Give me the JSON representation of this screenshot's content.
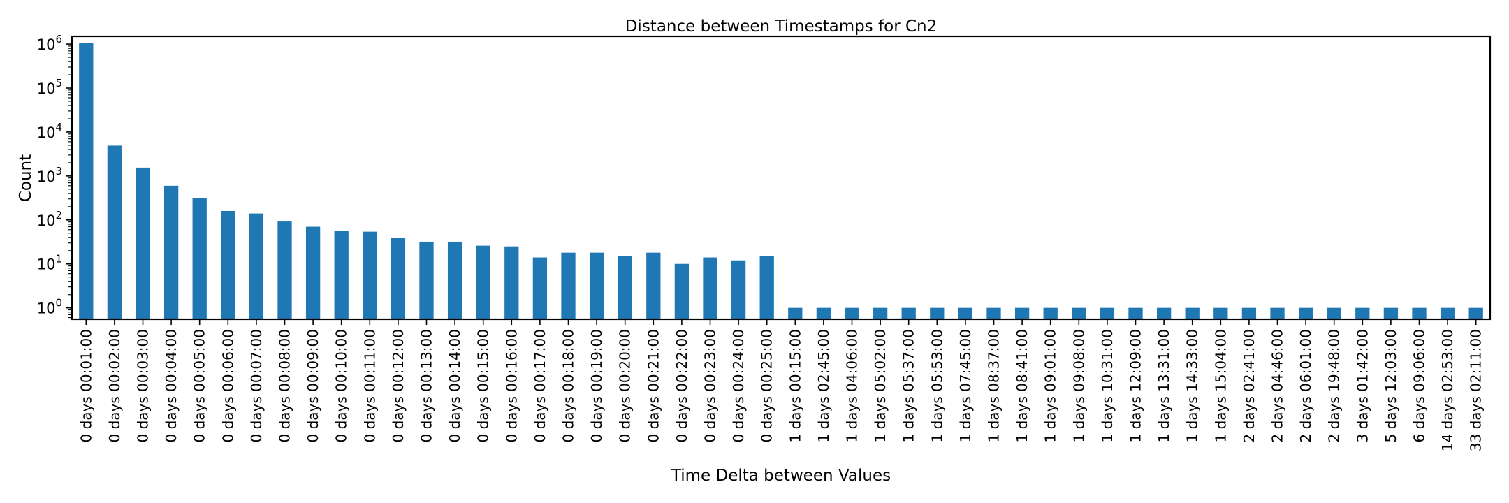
{
  "chart_data": {
    "type": "bar",
    "title": "Distance between Timestamps for Cn2",
    "xlabel": "Time Delta between Values",
    "ylabel": "Count",
    "yscale": "log",
    "ylim": [
      0.55,
      1500000
    ],
    "yticks": [
      {
        "value": 1,
        "base": "10",
        "exp": "0"
      },
      {
        "value": 10,
        "base": "10",
        "exp": "1"
      },
      {
        "value": 100,
        "base": "10",
        "exp": "2"
      },
      {
        "value": 1000,
        "base": "10",
        "exp": "3"
      },
      {
        "value": 10000,
        "base": "10",
        "exp": "4"
      },
      {
        "value": 100000,
        "base": "10",
        "exp": "5"
      },
      {
        "value": 1000000,
        "base": "10",
        "exp": "6"
      }
    ],
    "grid": false,
    "legend": false,
    "bar_color": "#1f77b4",
    "categories": [
      "0 days 00:01:00",
      "0 days 00:02:00",
      "0 days 00:03:00",
      "0 days 00:04:00",
      "0 days 00:05:00",
      "0 days 00:06:00",
      "0 days 00:07:00",
      "0 days 00:08:00",
      "0 days 00:09:00",
      "0 days 00:10:00",
      "0 days 00:11:00",
      "0 days 00:12:00",
      "0 days 00:13:00",
      "0 days 00:14:00",
      "0 days 00:15:00",
      "0 days 00:16:00",
      "0 days 00:17:00",
      "0 days 00:18:00",
      "0 days 00:19:00",
      "0 days 00:20:00",
      "0 days 00:21:00",
      "0 days 00:22:00",
      "0 days 00:23:00",
      "0 days 00:24:00",
      "0 days 00:25:00",
      "1 days 00:15:00",
      "1 days 02:45:00",
      "1 days 04:06:00",
      "1 days 05:02:00",
      "1 days 05:37:00",
      "1 days 05:53:00",
      "1 days 07:45:00",
      "1 days 08:37:00",
      "1 days 08:41:00",
      "1 days 09:01:00",
      "1 days 09:08:00",
      "1 days 10:31:00",
      "1 days 12:09:00",
      "1 days 13:31:00",
      "1 days 14:33:00",
      "1 days 15:04:00",
      "2 days 02:41:00",
      "2 days 04:46:00",
      "2 days 06:01:00",
      "2 days 19:48:00",
      "3 days 01:42:00",
      "5 days 12:03:00",
      "6 days 09:06:00",
      "14 days 02:53:00",
      "33 days 02:11:00"
    ],
    "values": [
      1050000,
      4900,
      1550,
      600,
      310,
      160,
      140,
      92,
      70,
      57,
      54,
      39,
      32,
      32,
      26,
      25,
      14,
      18,
      18,
      15,
      18,
      10,
      14,
      12,
      15,
      1,
      1,
      1,
      1,
      1,
      1,
      1,
      1,
      1,
      1,
      1,
      1,
      1,
      1,
      1,
      1,
      1,
      1,
      1,
      1,
      1,
      1,
      1,
      1,
      1
    ]
  }
}
